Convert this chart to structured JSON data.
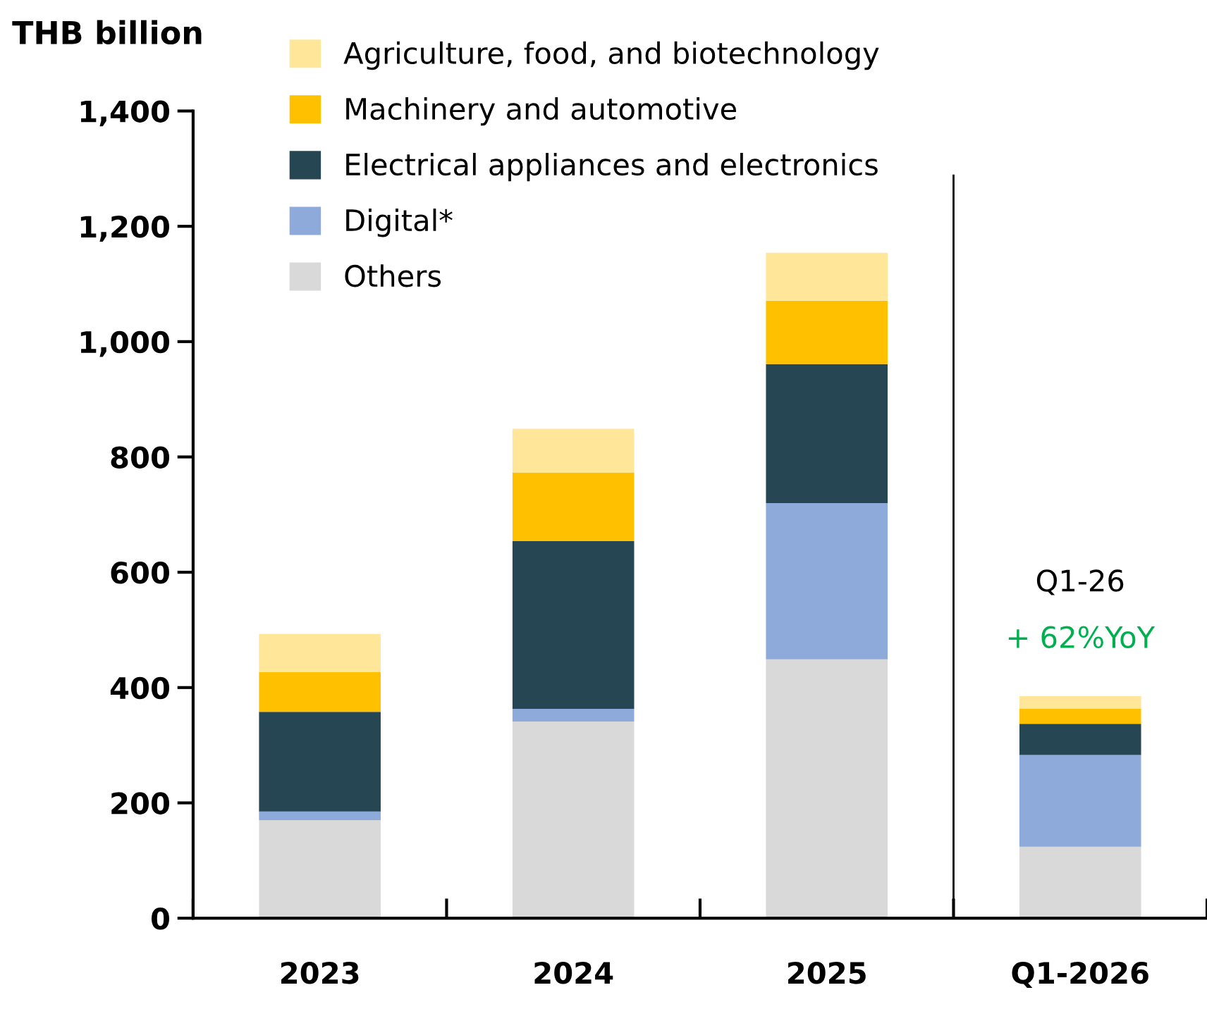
{
  "chart_data": {
    "type": "bar",
    "stacked": true,
    "ylabel": "THB billion",
    "categories": [
      "2023",
      "2024",
      "2025",
      "Q1-2026"
    ],
    "series": [
      {
        "name": "Others",
        "color": "#d9d9d9",
        "values": [
          170,
          341,
          449,
          124
        ]
      },
      {
        "name": "Digital*",
        "color": "#8eaadb",
        "values": [
          15,
          22,
          271,
          159
        ]
      },
      {
        "name": "Electrical appliances and electronics",
        "color": "#264653",
        "values": [
          173,
          291,
          241,
          54
        ]
      },
      {
        "name": "Machinery and automotive",
        "color": "#ffc000",
        "values": [
          69,
          119,
          110,
          26
        ]
      },
      {
        "name": "Agriculture, food, and biotechnology",
        "color": "#ffe699",
        "values": [
          66,
          76,
          83,
          22
        ]
      }
    ],
    "ylim": [
      0,
      1400
    ],
    "yticks": [
      0,
      200,
      400,
      600,
      800,
      {
        "value": 1000,
        "label": "1,000"
      },
      {
        "value": 1200,
        "label": "1,200"
      },
      {
        "value": 1400,
        "label": "1,400"
      }
    ],
    "annotations": [
      "Q1-26",
      "+ 62%YoY"
    ],
    "legend": "top left",
    "grid": false
  }
}
